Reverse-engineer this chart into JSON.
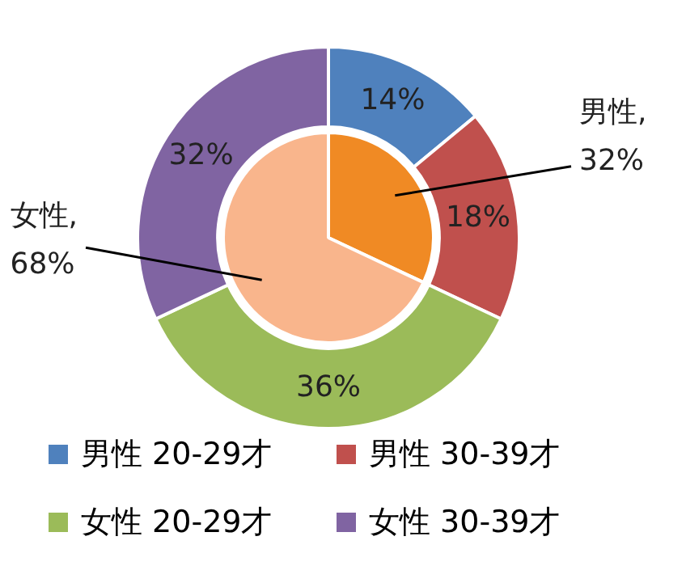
{
  "chart_data": [
    {
      "type": "donut",
      "categories": [
        "男性 20-29才",
        "男性 30-39才",
        "女性 20-29才",
        "女性 30-39才"
      ],
      "values": [
        14,
        18,
        36,
        32
      ],
      "colors": [
        "#4f81bd",
        "#c0504d",
        "#9bbb59",
        "#8064a2"
      ],
      "value_labels": [
        "14%",
        "18%",
        "36%",
        "32%"
      ],
      "legend": "bottom"
    },
    {
      "type": "pie",
      "values": [
        32,
        68
      ],
      "colors": [
        "#f08a24",
        "#f9b58c"
      ],
      "value_labels": [
        "男性,\n32%",
        "女性,\n68%"
      ]
    }
  ]
}
